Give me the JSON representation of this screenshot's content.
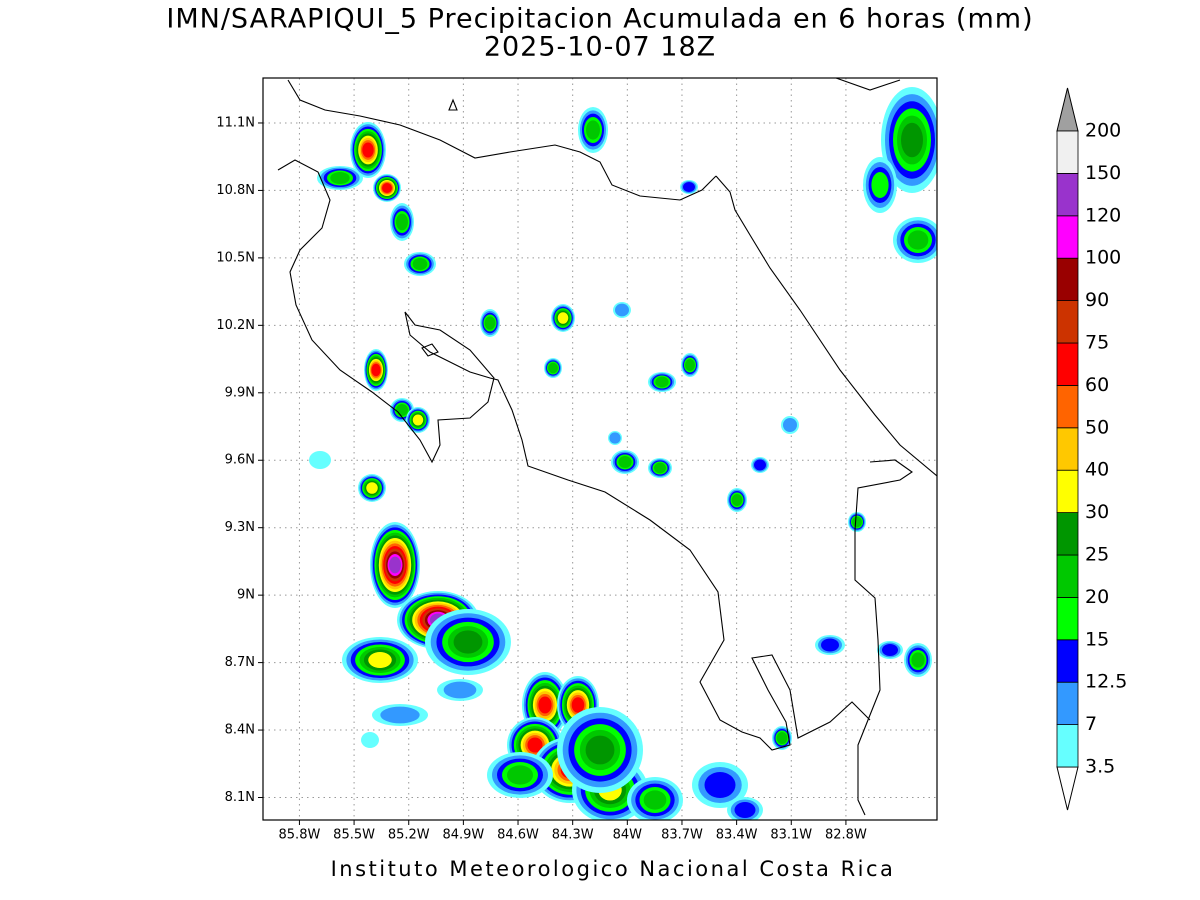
{
  "title": "IMN/SARAPIQUI_5 Precipitacion Acumulada en 6 horas (mm)",
  "subtitle": "2025-10-07 18Z",
  "footer": "Instituto Meteorologico Nacional Costa Rica",
  "map": {
    "lat_range": [
      8.0,
      11.3
    ],
    "lon_range": [
      -86.0,
      -82.3
    ],
    "grid": true,
    "lat_ticks": [
      {
        "value": 11.1,
        "label": "11.1N"
      },
      {
        "value": 10.8,
        "label": "10.8N"
      },
      {
        "value": 10.5,
        "label": "10.5N"
      },
      {
        "value": 10.2,
        "label": "10.2N"
      },
      {
        "value": 9.9,
        "label": "9.9N"
      },
      {
        "value": 9.6,
        "label": "9.6N"
      },
      {
        "value": 9.3,
        "label": "9.3N"
      },
      {
        "value": 9.0,
        "label": "9N"
      },
      {
        "value": 8.7,
        "label": "8.7N"
      },
      {
        "value": 8.4,
        "label": "8.4N"
      },
      {
        "value": 8.1,
        "label": "8.1N"
      }
    ],
    "lon_ticks": [
      {
        "value": -85.8,
        "label": "85.8W"
      },
      {
        "value": -85.5,
        "label": "85.5W"
      },
      {
        "value": -85.2,
        "label": "85.2W"
      },
      {
        "value": -84.9,
        "label": "84.9W"
      },
      {
        "value": -84.6,
        "label": "84.6W"
      },
      {
        "value": -84.3,
        "label": "84.3W"
      },
      {
        "value": -84.0,
        "label": "84W"
      },
      {
        "value": -83.7,
        "label": "83.7W"
      },
      {
        "value": -83.4,
        "label": "83.4W"
      },
      {
        "value": -83.1,
        "label": "83.1W"
      },
      {
        "value": -82.8,
        "label": "82.8W"
      }
    ]
  },
  "legend": {
    "levels": [
      3.5,
      7,
      12.5,
      15,
      20,
      25,
      30,
      40,
      50,
      60,
      75,
      90,
      100,
      120,
      150,
      200
    ],
    "colors": [
      "#66ffff",
      "#3399ff",
      "#0000ff",
      "#00ff00",
      "#00c800",
      "#009600",
      "#ffff00",
      "#ffc800",
      "#ff6400",
      "#ff0000",
      "#cc3300",
      "#990000",
      "#ff00ff",
      "#9933cc",
      "#f0f0f0"
    ],
    "under_color": "#ffffff",
    "over_color": "#a0a0a0"
  }
}
